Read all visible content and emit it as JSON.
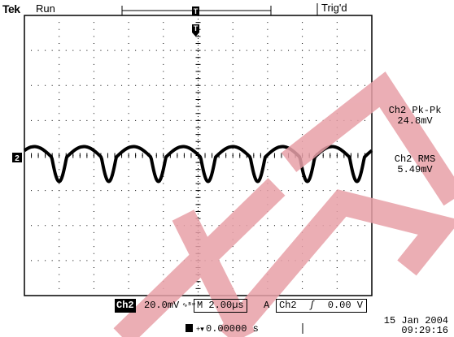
{
  "header": {
    "brand": "Tek",
    "status": "Run",
    "trigger_status": "Trig'd",
    "trigger_position_icon": "trigger-position-marker-icon",
    "trigger_marker_label": "T",
    "channel_marker_label": "2"
  },
  "measurements": [
    {
      "name": "Ch2 Pk-Pk",
      "value": "24.8mV"
    },
    {
      "name": "Ch2 RMS",
      "value": "5.49mV"
    }
  ],
  "bottom_bar": {
    "channel": "Ch2",
    "volts_per_div": "20.0mV",
    "bw_symbol": "ʹ∿Bw",
    "timebase": "M 2.00µs",
    "trigger_mode": "A",
    "trigger_source": "Ch2",
    "trigger_slope_icon": "rising-edge-icon",
    "trigger_level": "0.00 V"
  },
  "footer": {
    "horizontal_offset": "0.00000 s",
    "date": "15 Jan  2004",
    "time": "09:29:16"
  },
  "waveform": {
    "cycles": 7,
    "colors": {
      "trace": "#000000",
      "grid": "#000000",
      "watermark": "#e8a0a8"
    }
  }
}
